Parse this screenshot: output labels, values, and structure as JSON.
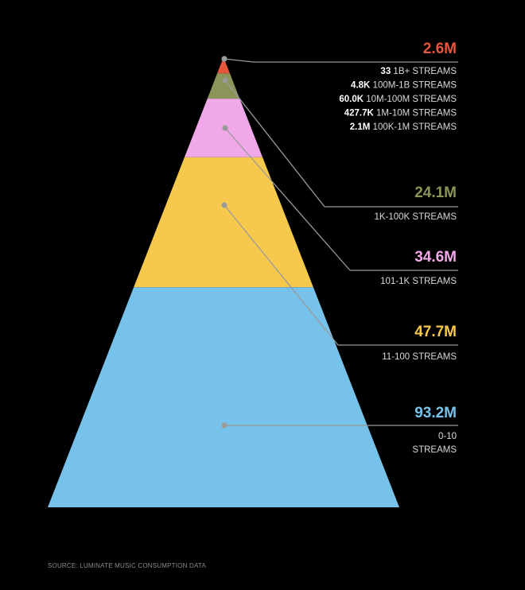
{
  "chart_data": {
    "type": "pyramid",
    "title": "",
    "unit": "tracks",
    "tiers": [
      {
        "label": "1B+ STREAMS",
        "value": 33,
        "value_label": "33",
        "color": "#e8553d",
        "group": "top",
        "share_of_height": 0.007
      },
      {
        "label": "100M-1B STREAMS",
        "value": 4800,
        "value_label": "4.8K",
        "color": "#e8553d",
        "group": "top",
        "share_of_height": 0.007
      },
      {
        "label": "10M-100M STREAMS",
        "value": 60000,
        "value_label": "60.0K",
        "color": "#e8553d",
        "group": "top",
        "share_of_height": 0.007
      },
      {
        "label": "1M-10M STREAMS",
        "value": 427700,
        "value_label": "427.7K",
        "color": "#e8553d",
        "group": "top",
        "share_of_height": 0.007
      },
      {
        "label": "100K-1M STREAMS",
        "value": 2100000,
        "value_label": "2.1M",
        "color": "#e8553d",
        "group": "top",
        "share_of_height": 0.008
      },
      {
        "label": "1K-100K STREAMS",
        "value": 24100000,
        "value_label": "24.1M",
        "color": "#8a955a",
        "share_of_height": 0.056
      },
      {
        "label": "101-1K STREAMS",
        "value": 34600000,
        "value_label": "34.6M",
        "color": "#f0a8e8",
        "share_of_height": 0.13
      },
      {
        "label": "11-100 STREAMS",
        "value": 47700000,
        "value_label": "47.7M",
        "color": "#f6c94c",
        "share_of_height": 0.289
      },
      {
        "label": "0-10 STREAMS",
        "value": 93200000,
        "value_label": "93.2M",
        "color": "#77c2ea",
        "share_of_height": 0.489
      }
    ],
    "callouts": {
      "top": {
        "total_label": "2.6M",
        "color": "#e8553d",
        "rows": [
          {
            "value": "33",
            "label": "1B+ STREAMS"
          },
          {
            "value": "4.8K",
            "label": "100M-1B STREAMS"
          },
          {
            "value": "60.0K",
            "label": "10M-100M STREAMS"
          },
          {
            "value": "427.7K",
            "label": "1M-10M STREAMS"
          },
          {
            "value": "2.1M",
            "label": "100K-1M STREAMS"
          }
        ]
      },
      "tiers": [
        {
          "value": "24.1M",
          "label": "1K-100K STREAMS",
          "color": "#8a955a"
        },
        {
          "value": "34.6M",
          "label": "101-1K STREAMS",
          "color": "#f0a8e8"
        },
        {
          "value": "47.7M",
          "label": "11-100 STREAMS",
          "color": "#f6c94c"
        },
        {
          "value": "93.2M",
          "label": "0-10",
          "label2": "STREAMS",
          "color": "#77c2ea"
        }
      ]
    },
    "source": "SOURCE: LUMINATE MUSIC CONSUMPTION DATA"
  },
  "colors": {
    "background": "#000000",
    "leader_line": "#9a9a9a",
    "text": "#d9d9d9",
    "muted": "#8c8c8c"
  }
}
